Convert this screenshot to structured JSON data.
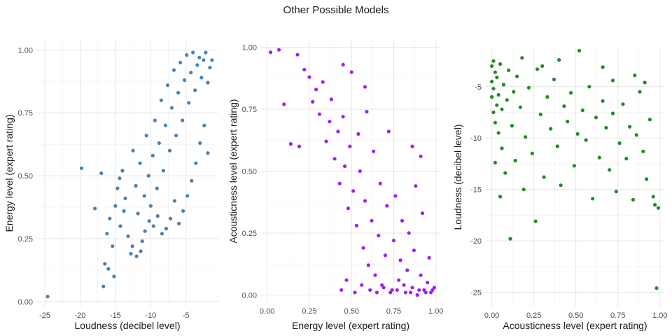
{
  "title": "Other Possible Models",
  "colors": {
    "panel1": "#4682b4",
    "panel2": "#a020f0",
    "panel3": "#228b22"
  },
  "chart_data": [
    {
      "type": "scatter",
      "title": "",
      "xlabel": "Loudness (decibel level)",
      "ylabel": "Energy level (expert rating)",
      "xlim": [
        -26.2,
        -0.4
      ],
      "ylim": [
        -0.02,
        1.04
      ],
      "xticks": [
        -25,
        -20,
        -15,
        -10,
        -5
      ],
      "yticks": [
        0.0,
        0.25,
        0.5,
        0.75,
        1.0
      ],
      "xtick_labels": [
        "-25",
        "-20",
        "-15",
        "-10",
        "-5"
      ],
      "ytick_labels": [
        "0.00",
        "0.25",
        "0.50",
        "0.75",
        "1.00"
      ],
      "grid": true,
      "color": "#4682b4",
      "points": [
        [
          -24.6,
          0.02
        ],
        [
          -19.8,
          0.53
        ],
        [
          -17.9,
          0.37
        ],
        [
          -17.0,
          0.51
        ],
        [
          -16.5,
          0.15
        ],
        [
          -16.7,
          0.06
        ],
        [
          -16.2,
          0.27
        ],
        [
          -15.8,
          0.33
        ],
        [
          -15.4,
          0.22
        ],
        [
          -15.0,
          0.38
        ],
        [
          -14.7,
          0.45
        ],
        [
          -14.3,
          0.3
        ],
        [
          -14.0,
          0.52
        ],
        [
          -13.6,
          0.41
        ],
        [
          -13.2,
          0.26
        ],
        [
          -12.8,
          0.19
        ],
        [
          -12.5,
          0.6
        ],
        [
          -12.1,
          0.46
        ],
        [
          -11.8,
          0.35
        ],
        [
          -11.5,
          0.55
        ],
        [
          -11.2,
          0.24
        ],
        [
          -10.9,
          0.42
        ],
        [
          -10.6,
          0.66
        ],
        [
          -10.3,
          0.5
        ],
        [
          -10.0,
          0.38
        ],
        [
          -9.7,
          0.58
        ],
        [
          -9.4,
          0.72
        ],
        [
          -9.1,
          0.45
        ],
        [
          -8.8,
          0.63
        ],
        [
          -8.5,
          0.8
        ],
        [
          -8.2,
          0.52
        ],
        [
          -7.9,
          0.7
        ],
        [
          -7.6,
          0.86
        ],
        [
          -7.3,
          0.6
        ],
        [
          -7.0,
          0.77
        ],
        [
          -6.7,
          0.92
        ],
        [
          -6.4,
          0.66
        ],
        [
          -6.1,
          0.83
        ],
        [
          -5.8,
          0.95
        ],
        [
          -5.5,
          0.72
        ],
        [
          -5.2,
          0.88
        ],
        [
          -4.9,
          0.98
        ],
        [
          -4.6,
          0.79
        ],
        [
          -4.3,
          0.91
        ],
        [
          -4.0,
          0.99
        ],
        [
          -3.7,
          0.84
        ],
        [
          -3.4,
          0.94
        ],
        [
          -3.1,
          0.97
        ],
        [
          -2.8,
          0.89
        ],
        [
          -2.5,
          0.96
        ],
        [
          -2.2,
          0.99
        ],
        [
          -1.9,
          0.87
        ],
        [
          -1.6,
          0.93
        ],
        [
          -1.3,
          0.96
        ],
        [
          -1.9,
          0.59
        ],
        [
          -2.4,
          0.7
        ],
        [
          -3.0,
          0.63
        ],
        [
          -3.6,
          0.55
        ],
        [
          -4.2,
          0.48
        ],
        [
          -4.8,
          0.42
        ],
        [
          -5.4,
          0.36
        ],
        [
          -6.0,
          0.31
        ],
        [
          -6.6,
          0.4
        ],
        [
          -7.2,
          0.33
        ],
        [
          -7.8,
          0.29
        ],
        [
          -8.4,
          0.27
        ],
        [
          -9.0,
          0.34
        ],
        [
          -9.6,
          0.3
        ],
        [
          -10.2,
          0.32
        ],
        [
          -10.8,
          0.28
        ],
        [
          -11.4,
          0.2
        ],
        [
          -12.0,
          0.18
        ],
        [
          -12.6,
          0.22
        ],
        [
          -13.8,
          0.36
        ],
        [
          -14.4,
          0.49
        ],
        [
          -15.2,
          0.1
        ],
        [
          -16.0,
          0.13
        ]
      ]
    },
    {
      "type": "scatter",
      "title": "",
      "xlabel": "Energy level (expert rating)",
      "ylabel": "Acousticness level (expert rating)",
      "xlim": [
        -0.04,
        1.03
      ],
      "ylim": [
        -0.03,
        1.03
      ],
      "xticks": [
        0.0,
        0.25,
        0.5,
        0.75,
        1.0
      ],
      "yticks": [
        0.0,
        0.25,
        0.5,
        0.75,
        1.0
      ],
      "xtick_labels": [
        "0.00",
        "0.25",
        "0.50",
        "0.75",
        "1.00"
      ],
      "ytick_labels": [
        "0.00",
        "0.25",
        "0.50",
        "0.75",
        "1.00"
      ],
      "grid": true,
      "color": "#a020f0",
      "points": [
        [
          0.02,
          0.98
        ],
        [
          0.07,
          0.99
        ],
        [
          0.1,
          0.77
        ],
        [
          0.14,
          0.61
        ],
        [
          0.18,
          0.97
        ],
        [
          0.19,
          0.6
        ],
        [
          0.22,
          0.91
        ],
        [
          0.25,
          0.88
        ],
        [
          0.27,
          0.78
        ],
        [
          0.29,
          0.83
        ],
        [
          0.31,
          0.73
        ],
        [
          0.33,
          0.86
        ],
        [
          0.35,
          0.62
        ],
        [
          0.37,
          0.7
        ],
        [
          0.38,
          0.79
        ],
        [
          0.4,
          0.55
        ],
        [
          0.42,
          0.66
        ],
        [
          0.43,
          0.45
        ],
        [
          0.45,
          0.72
        ],
        [
          0.46,
          0.52
        ],
        [
          0.48,
          0.35
        ],
        [
          0.49,
          0.6
        ],
        [
          0.5,
          0.9
        ],
        [
          0.51,
          0.42
        ],
        [
          0.53,
          0.28
        ],
        [
          0.54,
          0.65
        ],
        [
          0.55,
          0.5
        ],
        [
          0.57,
          0.19
        ],
        [
          0.58,
          0.38
        ],
        [
          0.59,
          0.74
        ],
        [
          0.6,
          0.12
        ],
        [
          0.62,
          0.3
        ],
        [
          0.63,
          0.58
        ],
        [
          0.64,
          0.08
        ],
        [
          0.66,
          0.24
        ],
        [
          0.67,
          0.45
        ],
        [
          0.68,
          0.04
        ],
        [
          0.7,
          0.16
        ],
        [
          0.71,
          0.36
        ],
        [
          0.72,
          0.66
        ],
        [
          0.74,
          0.02
        ],
        [
          0.75,
          0.22
        ],
        [
          0.76,
          0.4
        ],
        [
          0.78,
          0.06
        ],
        [
          0.79,
          0.14
        ],
        [
          0.8,
          0.3
        ],
        [
          0.82,
          0.01
        ],
        [
          0.83,
          0.1
        ],
        [
          0.84,
          0.25
        ],
        [
          0.86,
          0.03
        ],
        [
          0.87,
          0.18
        ],
        [
          0.88,
          0.44
        ],
        [
          0.9,
          0.02
        ],
        [
          0.91,
          0.08
        ],
        [
          0.92,
          0.33
        ],
        [
          0.94,
          0.01
        ],
        [
          0.95,
          0.05
        ],
        [
          0.96,
          0.15
        ],
        [
          0.98,
          0.02
        ],
        [
          0.99,
          0.03
        ],
        [
          0.44,
          0.02
        ],
        [
          0.47,
          0.06
        ],
        [
          0.52,
          0.01
        ],
        [
          0.56,
          0.04
        ],
        [
          0.61,
          0.02
        ],
        [
          0.65,
          0.01
        ],
        [
          0.69,
          0.03
        ],
        [
          0.73,
          0.01
        ],
        [
          0.77,
          0.02
        ],
        [
          0.81,
          0.04
        ],
        [
          0.85,
          0.01
        ],
        [
          0.89,
          0.0
        ],
        [
          0.93,
          0.02
        ],
        [
          0.97,
          0.01
        ],
        [
          0.91,
          0.56
        ],
        [
          0.86,
          0.6
        ],
        [
          0.58,
          0.84
        ],
        [
          0.45,
          0.93
        ]
      ]
    },
    {
      "type": "scatter",
      "title": "",
      "xlabel": "Acousticness level (expert rating)",
      "ylabel": "Loudness (decibel level)",
      "xlim": [
        -0.04,
        1.03
      ],
      "ylim": [
        -26.4,
        -1.2
      ],
      "xticks": [
        0.0,
        0.25,
        0.5,
        0.75,
        1.0
      ],
      "yticks": [
        -25,
        -20,
        -15,
        -10,
        -5
      ],
      "xtick_labels": [
        "0.00",
        "0.25",
        "0.50",
        "0.75",
        "1.00"
      ],
      "ytick_labels": [
        "-25",
        "-20",
        "-15",
        "-10",
        "-5"
      ],
      "grid": true,
      "color": "#228b22",
      "points": [
        [
          0.0,
          -3.0
        ],
        [
          0.0,
          -4.5
        ],
        [
          0.0,
          -6.0
        ],
        [
          0.01,
          -7.5
        ],
        [
          0.01,
          -2.5
        ],
        [
          0.01,
          -5.2
        ],
        [
          0.02,
          -8.5
        ],
        [
          0.02,
          -3.6
        ],
        [
          0.03,
          -6.8
        ],
        [
          0.03,
          -4.1
        ],
        [
          0.04,
          -9.5
        ],
        [
          0.04,
          -5.8
        ],
        [
          0.05,
          -2.8
        ],
        [
          0.06,
          -7.2
        ],
        [
          0.06,
          -11.0
        ],
        [
          0.07,
          -4.8
        ],
        [
          0.08,
          -13.4
        ],
        [
          0.09,
          -6.3
        ],
        [
          0.1,
          -3.4
        ],
        [
          0.11,
          -19.8
        ],
        [
          0.12,
          -8.8
        ],
        [
          0.13,
          -5.5
        ],
        [
          0.14,
          -12.2
        ],
        [
          0.15,
          -4.0
        ],
        [
          0.17,
          -7.0
        ],
        [
          0.19,
          -15.0
        ],
        [
          0.2,
          -9.9
        ],
        [
          0.22,
          -5.1
        ],
        [
          0.24,
          -11.5
        ],
        [
          0.26,
          -18.1
        ],
        [
          0.27,
          -3.3
        ],
        [
          0.29,
          -7.7
        ],
        [
          0.31,
          -13.8
        ],
        [
          0.33,
          -6.0
        ],
        [
          0.35,
          -9.1
        ],
        [
          0.37,
          -4.3
        ],
        [
          0.39,
          -10.8
        ],
        [
          0.41,
          -14.6
        ],
        [
          0.43,
          -6.9
        ],
        [
          0.45,
          -8.4
        ],
        [
          0.47,
          -5.6
        ],
        [
          0.49,
          -12.7
        ],
        [
          0.51,
          -9.6
        ],
        [
          0.52,
          -1.5
        ],
        [
          0.54,
          -7.3
        ],
        [
          0.56,
          -10.2
        ],
        [
          0.58,
          -5.0
        ],
        [
          0.6,
          -15.9
        ],
        [
          0.62,
          -8.0
        ],
        [
          0.64,
          -11.9
        ],
        [
          0.66,
          -6.4
        ],
        [
          0.68,
          -9.0
        ],
        [
          0.7,
          -13.1
        ],
        [
          0.72,
          -7.6
        ],
        [
          0.74,
          -15.2
        ],
        [
          0.76,
          -10.5
        ],
        [
          0.78,
          -6.7
        ],
        [
          0.8,
          -12.0
        ],
        [
          0.82,
          -8.9
        ],
        [
          0.84,
          -16.0
        ],
        [
          0.86,
          -9.7
        ],
        [
          0.88,
          -5.5
        ],
        [
          0.9,
          -11.3
        ],
        [
          0.92,
          -14.0
        ],
        [
          0.94,
          -8.2
        ],
        [
          0.96,
          -15.7
        ],
        [
          0.97,
          -16.5
        ],
        [
          0.98,
          -24.6
        ],
        [
          0.99,
          -16.8
        ],
        [
          0.91,
          -4.6
        ],
        [
          0.85,
          -3.9
        ],
        [
          0.72,
          -4.4
        ],
        [
          0.66,
          -3.1
        ],
        [
          0.4,
          -2.4
        ],
        [
          0.3,
          -3.0
        ],
        [
          0.18,
          -2.2
        ],
        [
          0.05,
          -15.7
        ],
        [
          0.02,
          -12.4
        ]
      ]
    }
  ]
}
